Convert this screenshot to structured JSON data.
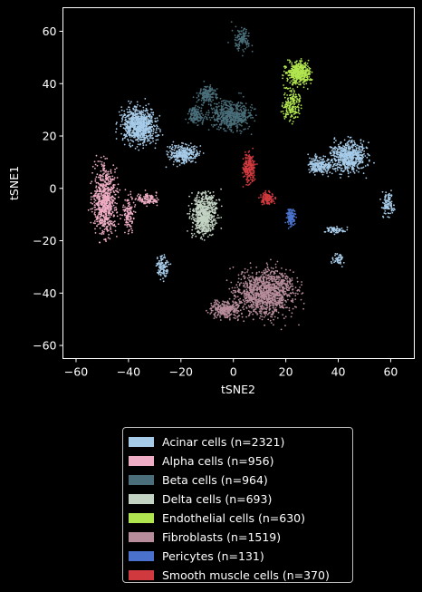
{
  "chart_data": {
    "type": "scatter",
    "title": "",
    "xlabel": "tSNE2",
    "ylabel": "tSNE1",
    "xlim": [
      -65,
      69
    ],
    "ylim": [
      -65,
      69
    ],
    "xticks": [
      -60,
      -40,
      -20,
      0,
      20,
      40,
      60
    ],
    "yticks": [
      -60,
      -40,
      -20,
      0,
      20,
      40,
      60
    ],
    "grid": false,
    "legend_placement": "below plot",
    "background": "#000000",
    "series": [
      {
        "name": "Acinar cells (n=2321)",
        "color": "#a6cbe8",
        "n": 2321,
        "clusters": [
          [
            -36,
            24,
            6,
            6,
            0.35
          ],
          [
            -19,
            13,
            5,
            3,
            0.14
          ],
          [
            44,
            12,
            6,
            5,
            0.28
          ],
          [
            33,
            9,
            4,
            3,
            0.1
          ],
          [
            -27,
            -30,
            2,
            4,
            0.05
          ],
          [
            59,
            -6,
            2,
            4,
            0.05
          ],
          [
            39,
            -16,
            4,
            1,
            0.03
          ],
          [
            40,
            -27,
            2,
            2,
            0.02
          ]
        ]
      },
      {
        "name": "Alpha cells (n=956)",
        "color": "#eeadc4",
        "n": 956,
        "clusters": [
          [
            -49,
            -5,
            4,
            11,
            0.75
          ],
          [
            -33,
            -4,
            4,
            2,
            0.12
          ],
          [
            -40,
            -9,
            2,
            6,
            0.13
          ]
        ]
      },
      {
        "name": "Beta cells (n=964)",
        "color": "#4a6f7b",
        "n": 964,
        "clusters": [
          [
            -1,
            28,
            7,
            5,
            0.55
          ],
          [
            -10,
            36,
            3,
            3,
            0.18
          ],
          [
            3,
            57,
            3,
            4,
            0.12
          ],
          [
            -14,
            28,
            3,
            3,
            0.15
          ]
        ]
      },
      {
        "name": "Delta cells (n=693)",
        "color": "#c3d3c3",
        "n": 693,
        "clusters": [
          [
            -11,
            -10,
            4,
            7,
            1
          ]
        ]
      },
      {
        "name": "Endothelial cells (n=630)",
        "color": "#b1e54f",
        "n": 630,
        "clusters": [
          [
            25,
            44,
            4,
            4,
            0.7
          ],
          [
            22,
            32,
            3,
            5,
            0.3
          ]
        ]
      },
      {
        "name": "Fibroblasts (n=1519)",
        "color": "#b78d9c",
        "n": 1519,
        "clusters": [
          [
            12,
            -40,
            10,
            8,
            0.8
          ],
          [
            -3,
            -46,
            5,
            3,
            0.2
          ]
        ]
      },
      {
        "name": "Pericytes (n=131)",
        "color": "#4a72cc",
        "n": 131,
        "clusters": [
          [
            22,
            -11,
            1.3,
            3,
            1
          ]
        ]
      },
      {
        "name": "Smooth muscle cells (n=370)",
        "color": "#d03a3f",
        "n": 370,
        "clusters": [
          [
            6,
            8,
            2,
            5,
            0.6
          ],
          [
            13,
            -4,
            2,
            2,
            0.4
          ]
        ]
      }
    ]
  }
}
